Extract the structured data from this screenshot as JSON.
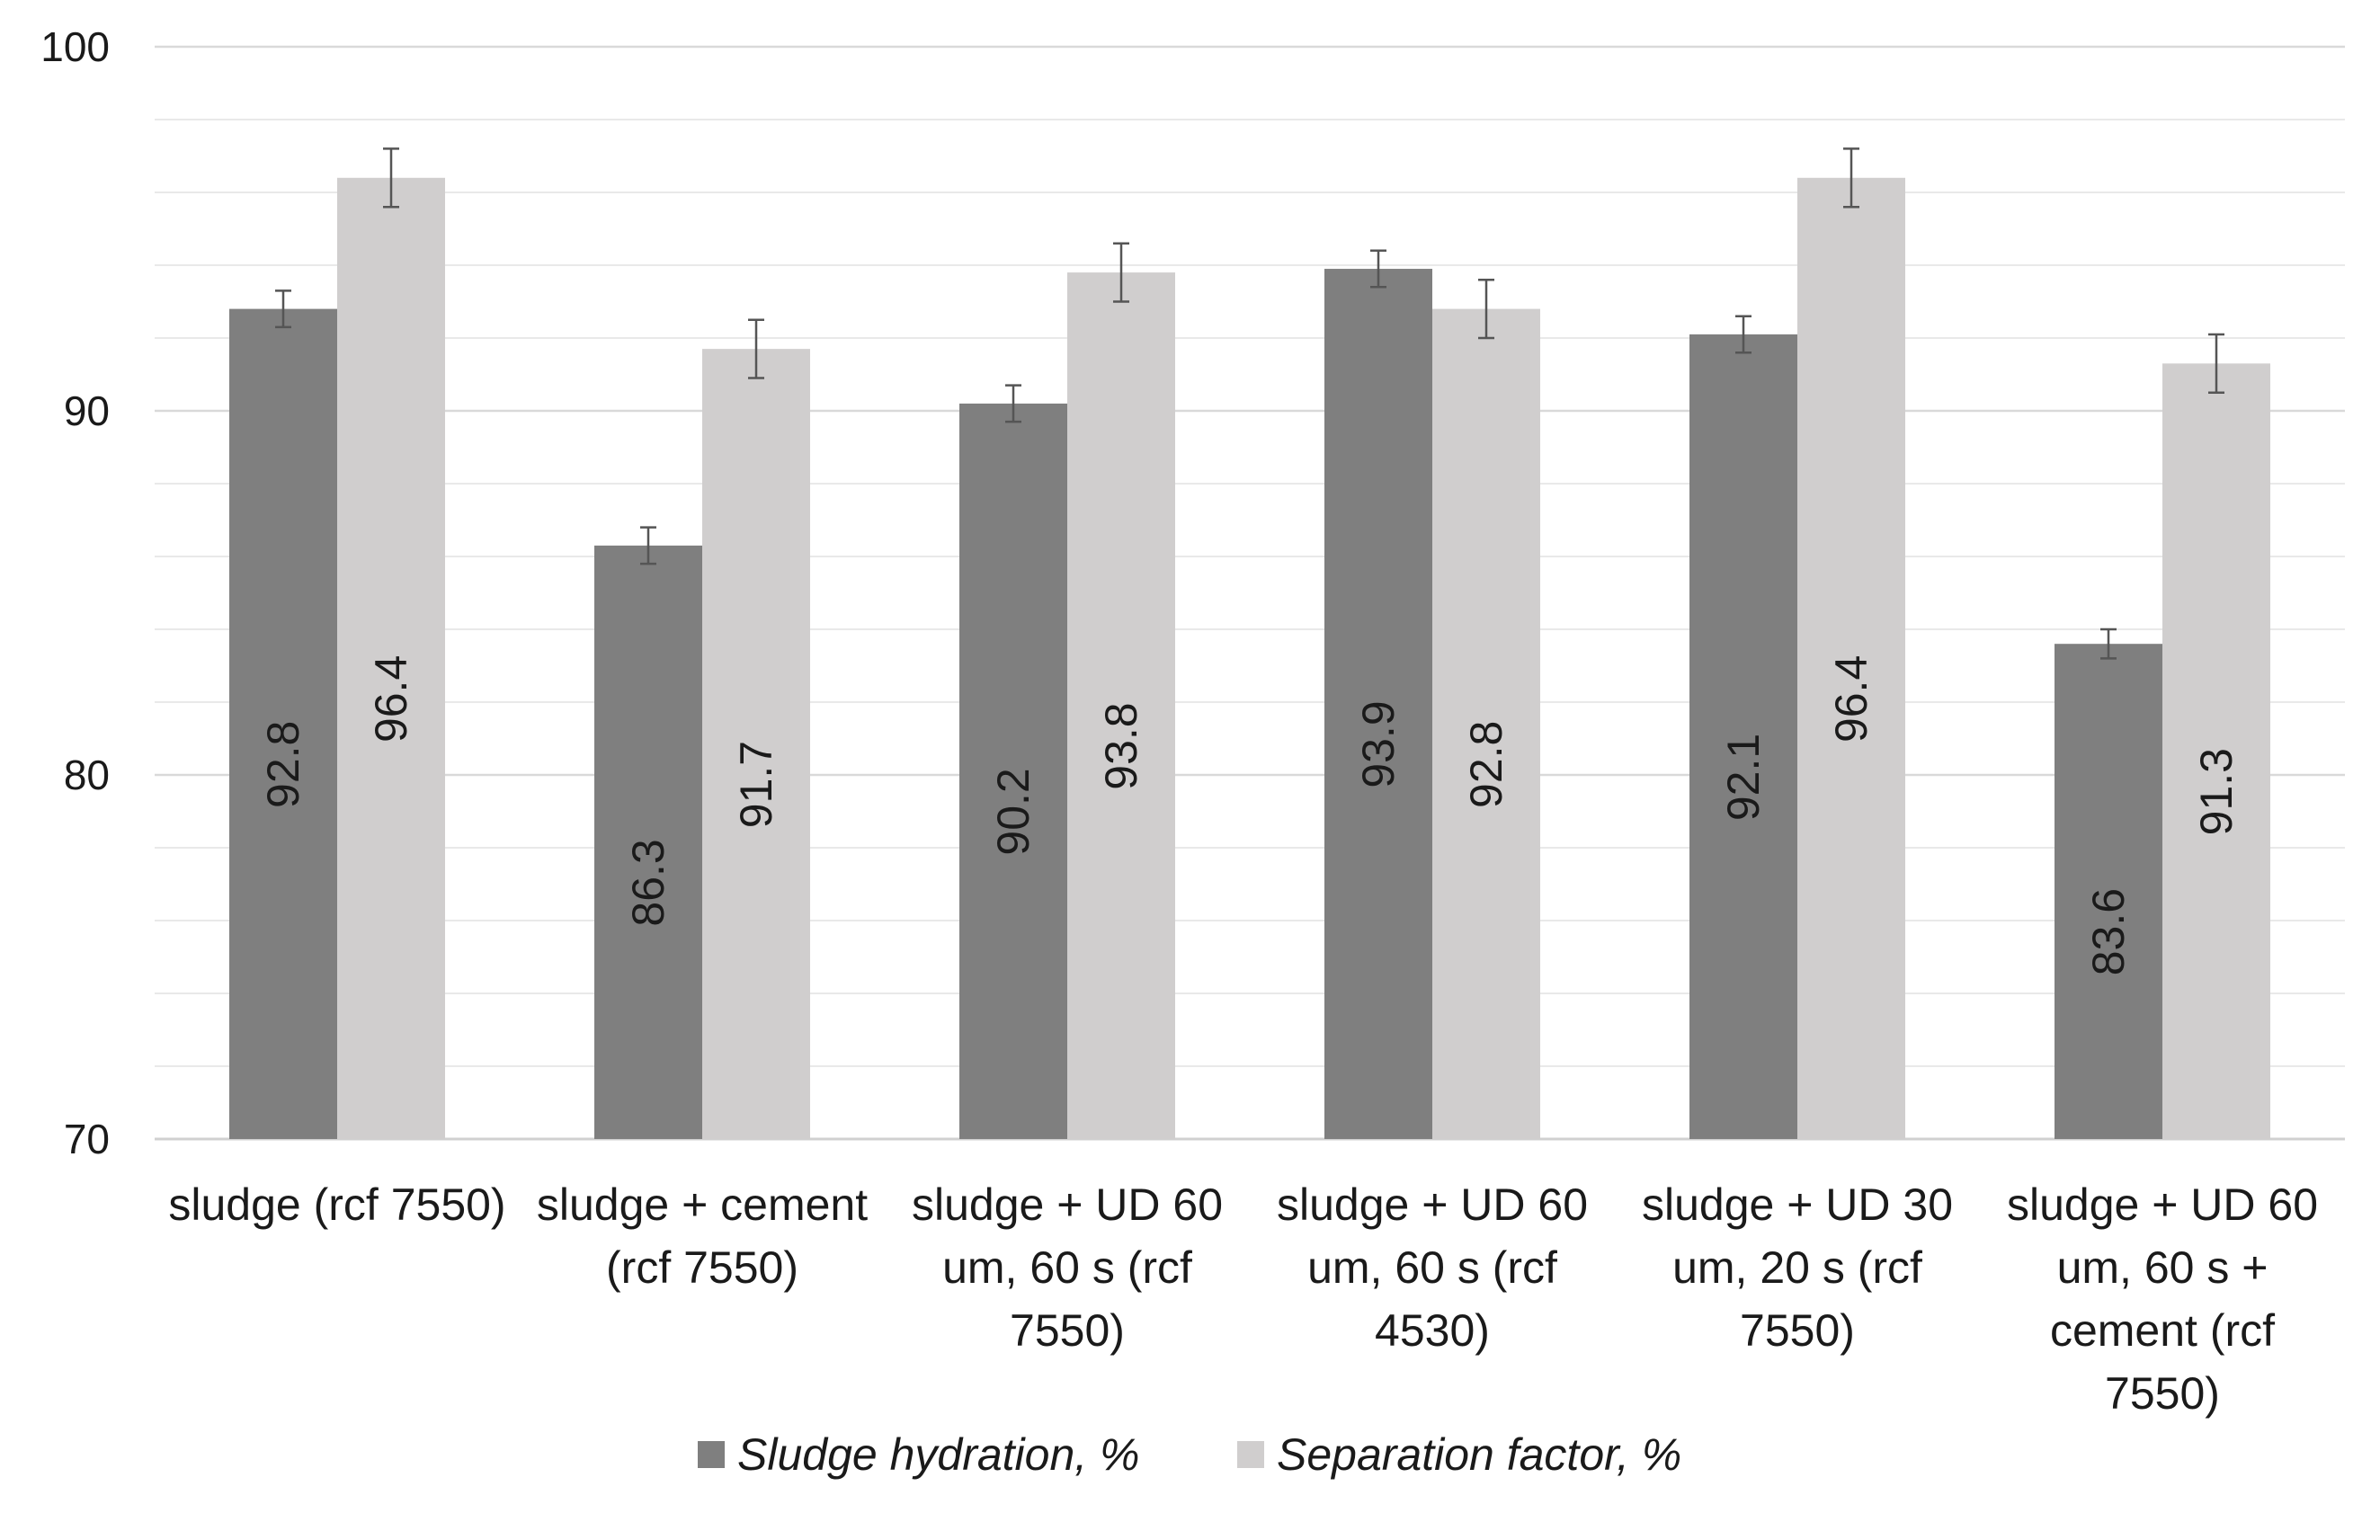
{
  "chart_data": {
    "type": "bar",
    "title": "",
    "xlabel": "",
    "ylabel": "",
    "ylim": [
      70,
      100
    ],
    "y_ticks": [
      "70",
      "80",
      "90",
      "100"
    ],
    "grid": true,
    "legend_position": "bottom",
    "categories": [
      [
        "sludge  (rcf 7550)"
      ],
      [
        "sludge + cement",
        "(rcf 7550)"
      ],
      [
        "sludge + UD 60",
        "um, 60 s (rcf",
        "7550)"
      ],
      [
        "sludge + UD 60",
        "um, 60 s (rcf",
        "4530)"
      ],
      [
        "sludge + UD 30",
        "um, 20 s (rcf",
        "7550)"
      ],
      [
        "sludge + UD 60",
        "um, 60 s +",
        "cement (rcf",
        "7550)"
      ]
    ],
    "series": [
      {
        "name": "Sludge hydration, %",
        "color": "#7f7f7f",
        "values": [
          92.8,
          86.3,
          90.2,
          93.9,
          92.1,
          83.6
        ],
        "labels": [
          "92.8",
          "86.3",
          "90.2",
          "93.9",
          "92.1",
          "83.6"
        ],
        "errors": [
          0.5,
          0.5,
          0.5,
          0.5,
          0.5,
          0.4
        ]
      },
      {
        "name": "Separation factor, %",
        "color": "#d0cece",
        "values": [
          96.4,
          91.7,
          93.8,
          92.8,
          96.4,
          91.3
        ],
        "labels": [
          "96.4",
          "91.7",
          "93.8",
          "92.8",
          "96.4",
          "91.3"
        ],
        "errors": [
          0.8,
          0.8,
          0.8,
          0.8,
          0.8,
          0.8
        ]
      }
    ],
    "colors": {
      "grid": "#e2e2e2",
      "axis": "#d0d0d0",
      "error_bar": "#555555"
    }
  }
}
